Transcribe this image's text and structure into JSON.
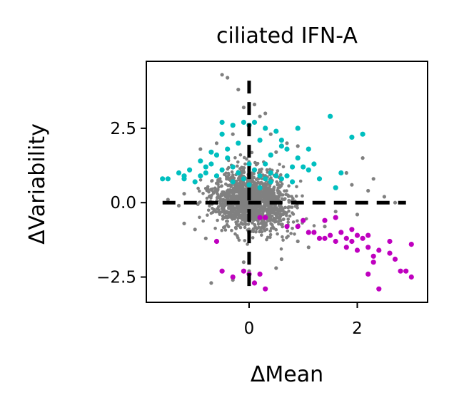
{
  "chart_data": {
    "type": "scatter",
    "title": "ciliated IFN-A",
    "xlabel": "ΔMean",
    "ylabel": "ΔVariability",
    "xlim": [
      -1.9,
      3.3
    ],
    "ylim": [
      -3.35,
      4.75
    ],
    "xticks": [
      {
        "value": 0,
        "label": "0"
      },
      {
        "value": 2,
        "label": "2"
      }
    ],
    "yticks": [
      {
        "value": 2.5,
        "label": "2.5"
      },
      {
        "value": 0.0,
        "label": "0.0"
      },
      {
        "value": -2.5,
        "label": "−2.5"
      }
    ],
    "reference_lines": [
      {
        "axis": "y",
        "value": 0
      },
      {
        "axis": "x",
        "value": 0
      }
    ],
    "grid": false,
    "legend": "none",
    "colors": {
      "background_points": "#808080",
      "high_variability": "#00bfbf",
      "high_mean_low_variability": "#bf00bf",
      "reference_line": "#000000"
    },
    "series": [
      {
        "color": "#808080",
        "cloud": true,
        "points": [
          [
            -0.5,
            4.3
          ],
          [
            -0.4,
            4.2
          ],
          [
            -0.2,
            3.8
          ],
          [
            0.1,
            3.3
          ],
          [
            0.3,
            3.0
          ],
          [
            -0.1,
            3.2
          ],
          [
            0.2,
            2.9
          ],
          [
            1.8,
            1.0
          ],
          [
            2.1,
            1.5
          ],
          [
            2.3,
            0.8
          ],
          [
            2.5,
            0.2
          ],
          [
            2.2,
            0.4
          ],
          [
            2.7,
            0.0
          ],
          [
            1.9,
            0.6
          ],
          [
            2.0,
            -0.4
          ],
          [
            -1.2,
            0.3
          ],
          [
            -1.5,
            0.1
          ],
          [
            -1.3,
            -0.1
          ],
          [
            -1.0,
            -0.9
          ],
          [
            -0.8,
            -1.2
          ],
          [
            -0.6,
            -1.3
          ],
          [
            -1.2,
            -0.7
          ],
          [
            -0.7,
            -2.7
          ],
          [
            -0.3,
            -2.6
          ],
          [
            0.2,
            -2.4
          ],
          [
            0.5,
            -2.2
          ],
          [
            0.6,
            -1.9
          ],
          [
            -0.1,
            -2.0
          ],
          [
            0.0,
            -2.3
          ],
          [
            1.2,
            -1.0
          ],
          [
            1.0,
            -0.6
          ],
          [
            1.4,
            -0.8
          ],
          [
            1.6,
            -0.3
          ],
          [
            0.9,
            -1.3
          ],
          [
            1.1,
            -1.5
          ],
          [
            -0.9,
            1.8
          ],
          [
            -0.6,
            2.0
          ],
          [
            -0.3,
            2.3
          ],
          [
            0.4,
            2.3
          ],
          [
            0.7,
            2.0
          ],
          [
            0.9,
            1.9
          ],
          [
            0.5,
            1.7
          ]
        ]
      },
      {
        "color": "#00bfbf",
        "points": [
          [
            -1.6,
            0.8
          ],
          [
            -1.5,
            0.8
          ],
          [
            -1.2,
            0.8
          ],
          [
            -1.1,
            1.1
          ],
          [
            -1.0,
            0.7
          ],
          [
            -1.2,
            0.9
          ],
          [
            -0.9,
            0.9
          ],
          [
            -0.8,
            1.0
          ],
          [
            -0.9,
            1.4
          ],
          [
            -0.7,
            1.3
          ],
          [
            -0.6,
            1.6
          ],
          [
            -0.4,
            1.5
          ],
          [
            -0.3,
            1.2
          ],
          [
            -0.5,
            1.1
          ],
          [
            -0.2,
            1.0
          ],
          [
            0.0,
            1.3
          ],
          [
            0.1,
            1.1
          ],
          [
            0.2,
            0.9
          ],
          [
            0.3,
            0.8
          ],
          [
            0.4,
            1.0
          ],
          [
            0.5,
            0.9
          ],
          [
            0.6,
            0.8
          ],
          [
            0.7,
            0.9
          ],
          [
            0.8,
            0.7
          ],
          [
            -0.3,
            0.7
          ],
          [
            -0.1,
            0.8
          ],
          [
            0.0,
            0.6
          ],
          [
            0.2,
            0.5
          ],
          [
            -0.6,
            0.9
          ],
          [
            -0.8,
            1.2
          ],
          [
            0.3,
            1.3
          ],
          [
            0.4,
            1.6
          ],
          [
            -0.4,
            1.8
          ],
          [
            -0.5,
            2.3
          ],
          [
            -0.3,
            2.6
          ],
          [
            -0.1,
            2.7
          ],
          [
            0.0,
            2.6
          ],
          [
            -0.2,
            2.0
          ],
          [
            0.1,
            2.7
          ],
          [
            0.3,
            2.5
          ],
          [
            0.5,
            2.4
          ],
          [
            0.6,
            1.9
          ],
          [
            0.7,
            1.8
          ],
          [
            0.9,
            2.5
          ],
          [
            1.1,
            1.8
          ],
          [
            1.2,
            1.3
          ],
          [
            0.9,
            1.5
          ],
          [
            1.0,
            1.2
          ],
          [
            1.1,
            1.1
          ],
          [
            0.8,
            1.2
          ],
          [
            1.5,
            2.9
          ],
          [
            1.9,
            2.2
          ],
          [
            2.1,
            2.3
          ],
          [
            1.6,
            0.5
          ],
          [
            1.3,
            0.8
          ],
          [
            1.7,
            1.0
          ],
          [
            -0.5,
            2.7
          ],
          [
            0.2,
            2.1
          ],
          [
            0.6,
            2.1
          ],
          [
            -0.7,
            1.7
          ],
          [
            -1.3,
            1.0
          ],
          [
            0.4,
            0.7
          ]
        ]
      },
      {
        "color": "#bf00bf",
        "points": [
          [
            -0.6,
            -1.3
          ],
          [
            -0.5,
            -2.3
          ],
          [
            -0.3,
            -2.5
          ],
          [
            -0.1,
            -2.3
          ],
          [
            0.0,
            -2.4
          ],
          [
            0.1,
            -2.7
          ],
          [
            0.2,
            -2.4
          ],
          [
            0.3,
            -2.9
          ],
          [
            0.2,
            -0.5
          ],
          [
            0.3,
            -0.5
          ],
          [
            0.7,
            -0.8
          ],
          [
            0.9,
            -0.8
          ],
          [
            1.0,
            -0.6
          ],
          [
            1.1,
            -1.0
          ],
          [
            1.2,
            -1.0
          ],
          [
            1.3,
            -1.2
          ],
          [
            1.4,
            -0.6
          ],
          [
            1.5,
            -1.1
          ],
          [
            1.6,
            -0.5
          ],
          [
            1.6,
            -1.3
          ],
          [
            1.7,
            -1.0
          ],
          [
            1.8,
            -1.2
          ],
          [
            1.8,
            -1.5
          ],
          [
            1.9,
            -0.9
          ],
          [
            1.9,
            -1.3
          ],
          [
            2.0,
            -1.1
          ],
          [
            2.0,
            -1.6
          ],
          [
            2.1,
            -1.2
          ],
          [
            2.2,
            -1.1
          ],
          [
            2.2,
            -1.5
          ],
          [
            2.3,
            -1.8
          ],
          [
            2.3,
            -2.0
          ],
          [
            2.2,
            -2.4
          ],
          [
            2.4,
            -1.6
          ],
          [
            2.4,
            -2.9
          ],
          [
            2.6,
            -1.3
          ],
          [
            2.6,
            -1.7
          ],
          [
            2.7,
            -1.9
          ],
          [
            2.8,
            -2.3
          ],
          [
            2.9,
            -2.3
          ],
          [
            3.0,
            -1.4
          ],
          [
            3.0,
            -2.5
          ],
          [
            1.4,
            -1.2
          ]
        ]
      }
    ]
  }
}
